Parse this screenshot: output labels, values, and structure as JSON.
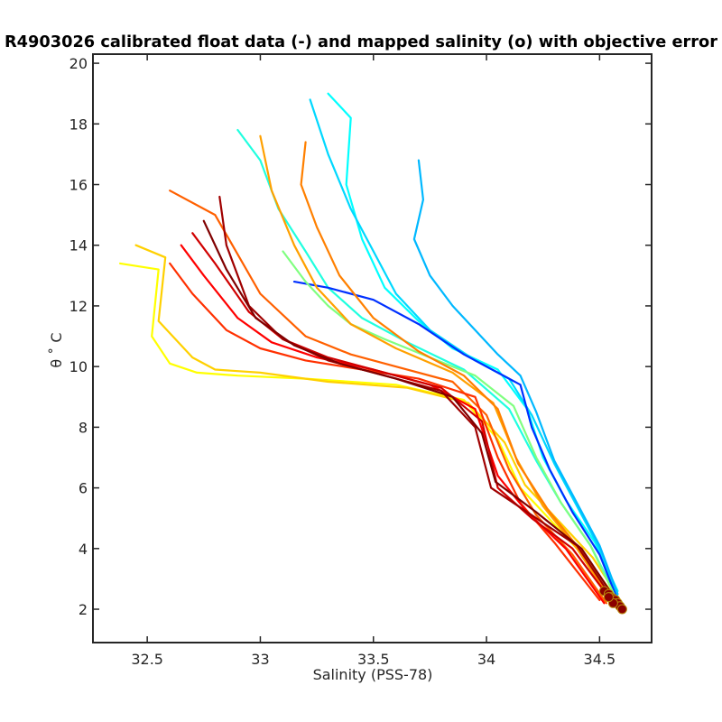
{
  "chart_data": {
    "type": "line",
    "title": "R4903026 calibrated float data (-) and mapped salinity (o) with objective error",
    "xlabel": "Salinity (PSS-78)",
    "ylabel": "θ ˚ C",
    "xlim": [
      32.26,
      34.73
    ],
    "ylim": [
      0.9,
      20.3
    ],
    "x_ticks": [
      "32.5",
      "33",
      "33.5",
      "34",
      "34.5"
    ],
    "y_ticks": [
      "2",
      "4",
      "6",
      "8",
      "10",
      "12",
      "14",
      "16",
      "18",
      "20"
    ],
    "grid": false,
    "legend": "none",
    "colormap": "jet",
    "series": [
      {
        "color": "#ffff00",
        "x": [
          32.38,
          32.55,
          32.52,
          32.6,
          32.72,
          32.9,
          33.2,
          33.6,
          33.9,
          34.05,
          34.15,
          34.3,
          34.45,
          34.6
        ],
        "y": [
          13.4,
          13.2,
          11.0,
          10.1,
          9.8,
          9.7,
          9.6,
          9.4,
          8.9,
          7.6,
          6.0,
          4.8,
          3.6,
          2.1
        ]
      },
      {
        "color": "#ffd000",
        "x": [
          32.45,
          32.58,
          32.55,
          32.7,
          32.8,
          33.0,
          33.3,
          33.65,
          33.92,
          34.08,
          34.17,
          34.32,
          34.47,
          34.6
        ],
        "y": [
          14.0,
          13.6,
          11.5,
          10.3,
          9.9,
          9.8,
          9.5,
          9.3,
          8.8,
          7.5,
          6.1,
          4.9,
          3.7,
          2.2
        ]
      },
      {
        "color": "#00ffff",
        "x": [
          33.3,
          33.4,
          33.38,
          33.45,
          33.55,
          33.7,
          33.85,
          34.05,
          34.18,
          34.25,
          34.35,
          34.48,
          34.58
        ],
        "y": [
          19.0,
          18.2,
          16.0,
          14.2,
          12.6,
          11.5,
          10.6,
          9.9,
          8.6,
          7.0,
          5.6,
          4.2,
          2.6
        ]
      },
      {
        "color": "#00d8ff",
        "x": [
          33.22,
          33.3,
          33.4,
          33.5,
          33.6,
          33.75,
          33.95,
          34.1,
          34.2,
          34.3,
          34.4,
          34.5,
          34.58
        ],
        "y": [
          18.8,
          17.0,
          15.2,
          13.8,
          12.4,
          11.2,
          10.2,
          9.6,
          8.4,
          6.8,
          5.4,
          4.0,
          2.4
        ]
      },
      {
        "color": "#20ffdf",
        "x": [
          32.9,
          33.0,
          33.08,
          33.2,
          33.3,
          33.45,
          33.65,
          33.9,
          34.1,
          34.22,
          34.33,
          34.46,
          34.57
        ],
        "y": [
          17.8,
          16.8,
          15.2,
          13.8,
          12.6,
          11.6,
          10.8,
          9.9,
          8.6,
          6.9,
          5.5,
          4.1,
          2.5
        ]
      },
      {
        "color": "#00b8ff",
        "x": [
          33.7,
          33.72,
          33.68,
          33.75,
          33.85,
          33.95,
          34.05,
          34.15,
          34.22,
          34.3,
          34.4,
          34.5,
          34.58
        ],
        "y": [
          16.8,
          15.5,
          14.2,
          13.0,
          12.0,
          11.2,
          10.4,
          9.7,
          8.5,
          6.9,
          5.5,
          4.1,
          2.5
        ]
      },
      {
        "color": "#0030ff",
        "x": [
          33.15,
          33.3,
          33.5,
          33.7,
          33.9,
          34.05,
          34.15,
          34.2,
          34.28,
          34.38,
          34.5,
          34.58
        ],
        "y": [
          12.8,
          12.6,
          12.2,
          11.4,
          10.4,
          9.8,
          9.4,
          8.0,
          6.6,
          5.2,
          3.8,
          2.3
        ]
      },
      {
        "color": "#80ff80",
        "x": [
          33.1,
          33.2,
          33.3,
          33.4,
          33.55,
          33.75,
          33.95,
          34.12,
          34.22,
          34.33,
          34.46,
          34.57
        ],
        "y": [
          13.8,
          12.8,
          12.0,
          11.4,
          10.9,
          10.3,
          9.7,
          8.7,
          7.0,
          5.5,
          4.1,
          2.4
        ]
      },
      {
        "color": "#ffa000",
        "x": [
          33.0,
          33.05,
          33.15,
          33.25,
          33.4,
          33.6,
          33.85,
          34.03,
          34.13,
          34.25,
          34.4,
          34.55
        ],
        "y": [
          17.6,
          15.8,
          14.0,
          12.6,
          11.4,
          10.6,
          9.8,
          8.8,
          7.0,
          5.4,
          4.0,
          2.3
        ]
      },
      {
        "color": "#ff8000",
        "x": [
          33.2,
          33.18,
          33.25,
          33.35,
          33.5,
          33.7,
          33.9,
          34.05,
          34.14,
          34.27,
          34.42,
          34.55
        ],
        "y": [
          17.4,
          16.0,
          14.6,
          13.0,
          11.6,
          10.5,
          9.7,
          8.6,
          6.8,
          5.3,
          3.9,
          2.3
        ]
      },
      {
        "color": "#ff6000",
        "x": [
          32.6,
          32.8,
          33.0,
          33.2,
          33.4,
          33.6,
          33.85,
          34.0,
          34.1,
          34.22,
          34.38,
          34.53
        ],
        "y": [
          15.8,
          15.0,
          12.4,
          11.0,
          10.4,
          10.0,
          9.5,
          8.4,
          6.6,
          5.1,
          3.8,
          2.2
        ]
      },
      {
        "color": "#ff3000",
        "x": [
          32.6,
          32.7,
          32.85,
          33.0,
          33.2,
          33.45,
          33.7,
          33.95,
          34.05,
          34.15,
          34.3,
          34.5
        ],
        "y": [
          13.4,
          12.4,
          11.2,
          10.6,
          10.2,
          9.9,
          9.6,
          9.0,
          7.0,
          5.5,
          4.2,
          2.3
        ]
      },
      {
        "color": "#ff0000",
        "x": [
          32.65,
          32.75,
          32.9,
          33.05,
          33.25,
          33.5,
          33.75,
          33.95,
          34.05,
          34.18,
          34.35,
          34.52
        ],
        "y": [
          14.0,
          13.0,
          11.6,
          10.8,
          10.3,
          9.9,
          9.4,
          8.6,
          6.4,
          5.2,
          4.0,
          2.2
        ]
      },
      {
        "color": "#d00000",
        "x": [
          32.7,
          32.8,
          32.95,
          33.1,
          33.3,
          33.55,
          33.8,
          33.98,
          34.05,
          34.2,
          34.38,
          34.56
        ],
        "y": [
          14.4,
          13.4,
          11.8,
          10.9,
          10.3,
          9.8,
          9.3,
          8.2,
          6.0,
          5.0,
          4.0,
          2.2
        ]
      },
      {
        "color": "#a00000",
        "x": [
          32.82,
          32.85,
          32.95,
          33.1,
          33.3,
          33.55,
          33.8,
          33.95,
          34.02,
          34.2,
          34.4,
          34.58
        ],
        "y": [
          15.6,
          14.0,
          12.0,
          10.9,
          10.2,
          9.7,
          9.2,
          8.0,
          6.0,
          5.1,
          4.1,
          2.1
        ]
      },
      {
        "color": "#800000",
        "x": [
          32.75,
          32.85,
          32.98,
          33.15,
          33.35,
          33.6,
          33.85,
          33.98,
          34.04,
          34.22,
          34.42,
          34.6
        ],
        "y": [
          14.8,
          13.2,
          11.6,
          10.7,
          10.1,
          9.6,
          9.0,
          7.8,
          6.2,
          5.2,
          4.0,
          2.0
        ]
      }
    ],
    "mapped_salinity": {
      "x": [
        34.52,
        34.54,
        34.55,
        34.56,
        34.57,
        34.58,
        34.59,
        34.6,
        34.56,
        34.54
      ],
      "y": [
        2.6,
        2.5,
        2.4,
        2.35,
        2.3,
        2.2,
        2.1,
        2.0,
        2.2,
        2.4
      ]
    }
  }
}
